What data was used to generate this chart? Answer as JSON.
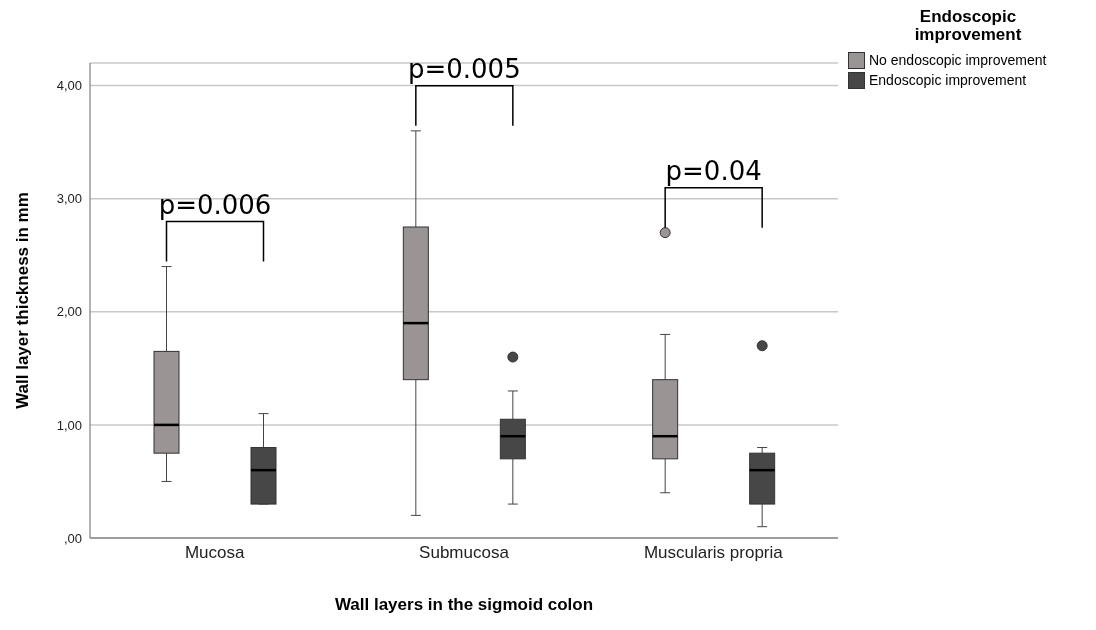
{
  "chart_data": {
    "type": "box",
    "xlabel": "Wall layers in the sigmoid colon",
    "ylabel": "Wall layer thickness in mm",
    "legend_title": "Endoscopic improvement",
    "legend": "top right",
    "grid": "y",
    "categories": [
      "Mucosa",
      "Submucosa",
      "Muscularis propria"
    ],
    "ylim": [
      0,
      4.2
    ],
    "yticks": [
      {
        "value": 0,
        "label": ",00"
      },
      {
        "value": 1,
        "label": "1,00"
      },
      {
        "value": 2,
        "label": "2,00"
      },
      {
        "value": 3,
        "label": "3,00"
      },
      {
        "value": 4,
        "label": "4,00"
      }
    ],
    "annotations": [
      "p=0.006",
      "p=0.005",
      "p=0.04"
    ],
    "series": [
      {
        "name": "No endoscopic improvement",
        "color": "#9a9494",
        "boxes": [
          {
            "low": 0.5,
            "q1": 0.75,
            "median": 1.0,
            "q3": 1.65,
            "high": 2.4
          },
          {
            "low": 0.2,
            "q1": 1.4,
            "median": 1.9,
            "q3": 2.75,
            "high": 3.6
          },
          {
            "low": 0.4,
            "q1": 0.7,
            "median": 0.9,
            "q3": 1.4,
            "high": 1.8,
            "outliers": [
              2.7
            ]
          }
        ]
      },
      {
        "name": "Endoscopic improvement",
        "color": "#474747",
        "boxes": [
          {
            "low": 0.3,
            "q1": 0.3,
            "median": 0.6,
            "q3": 0.8,
            "high": 1.1
          },
          {
            "low": 0.3,
            "q1": 0.7,
            "median": 0.9,
            "q3": 1.05,
            "high": 1.3,
            "outliers": [
              1.6
            ]
          },
          {
            "low": 0.1,
            "q1": 0.3,
            "median": 0.6,
            "q3": 0.75,
            "high": 0.8,
            "outliers": [
              1.7
            ]
          }
        ]
      }
    ]
  }
}
